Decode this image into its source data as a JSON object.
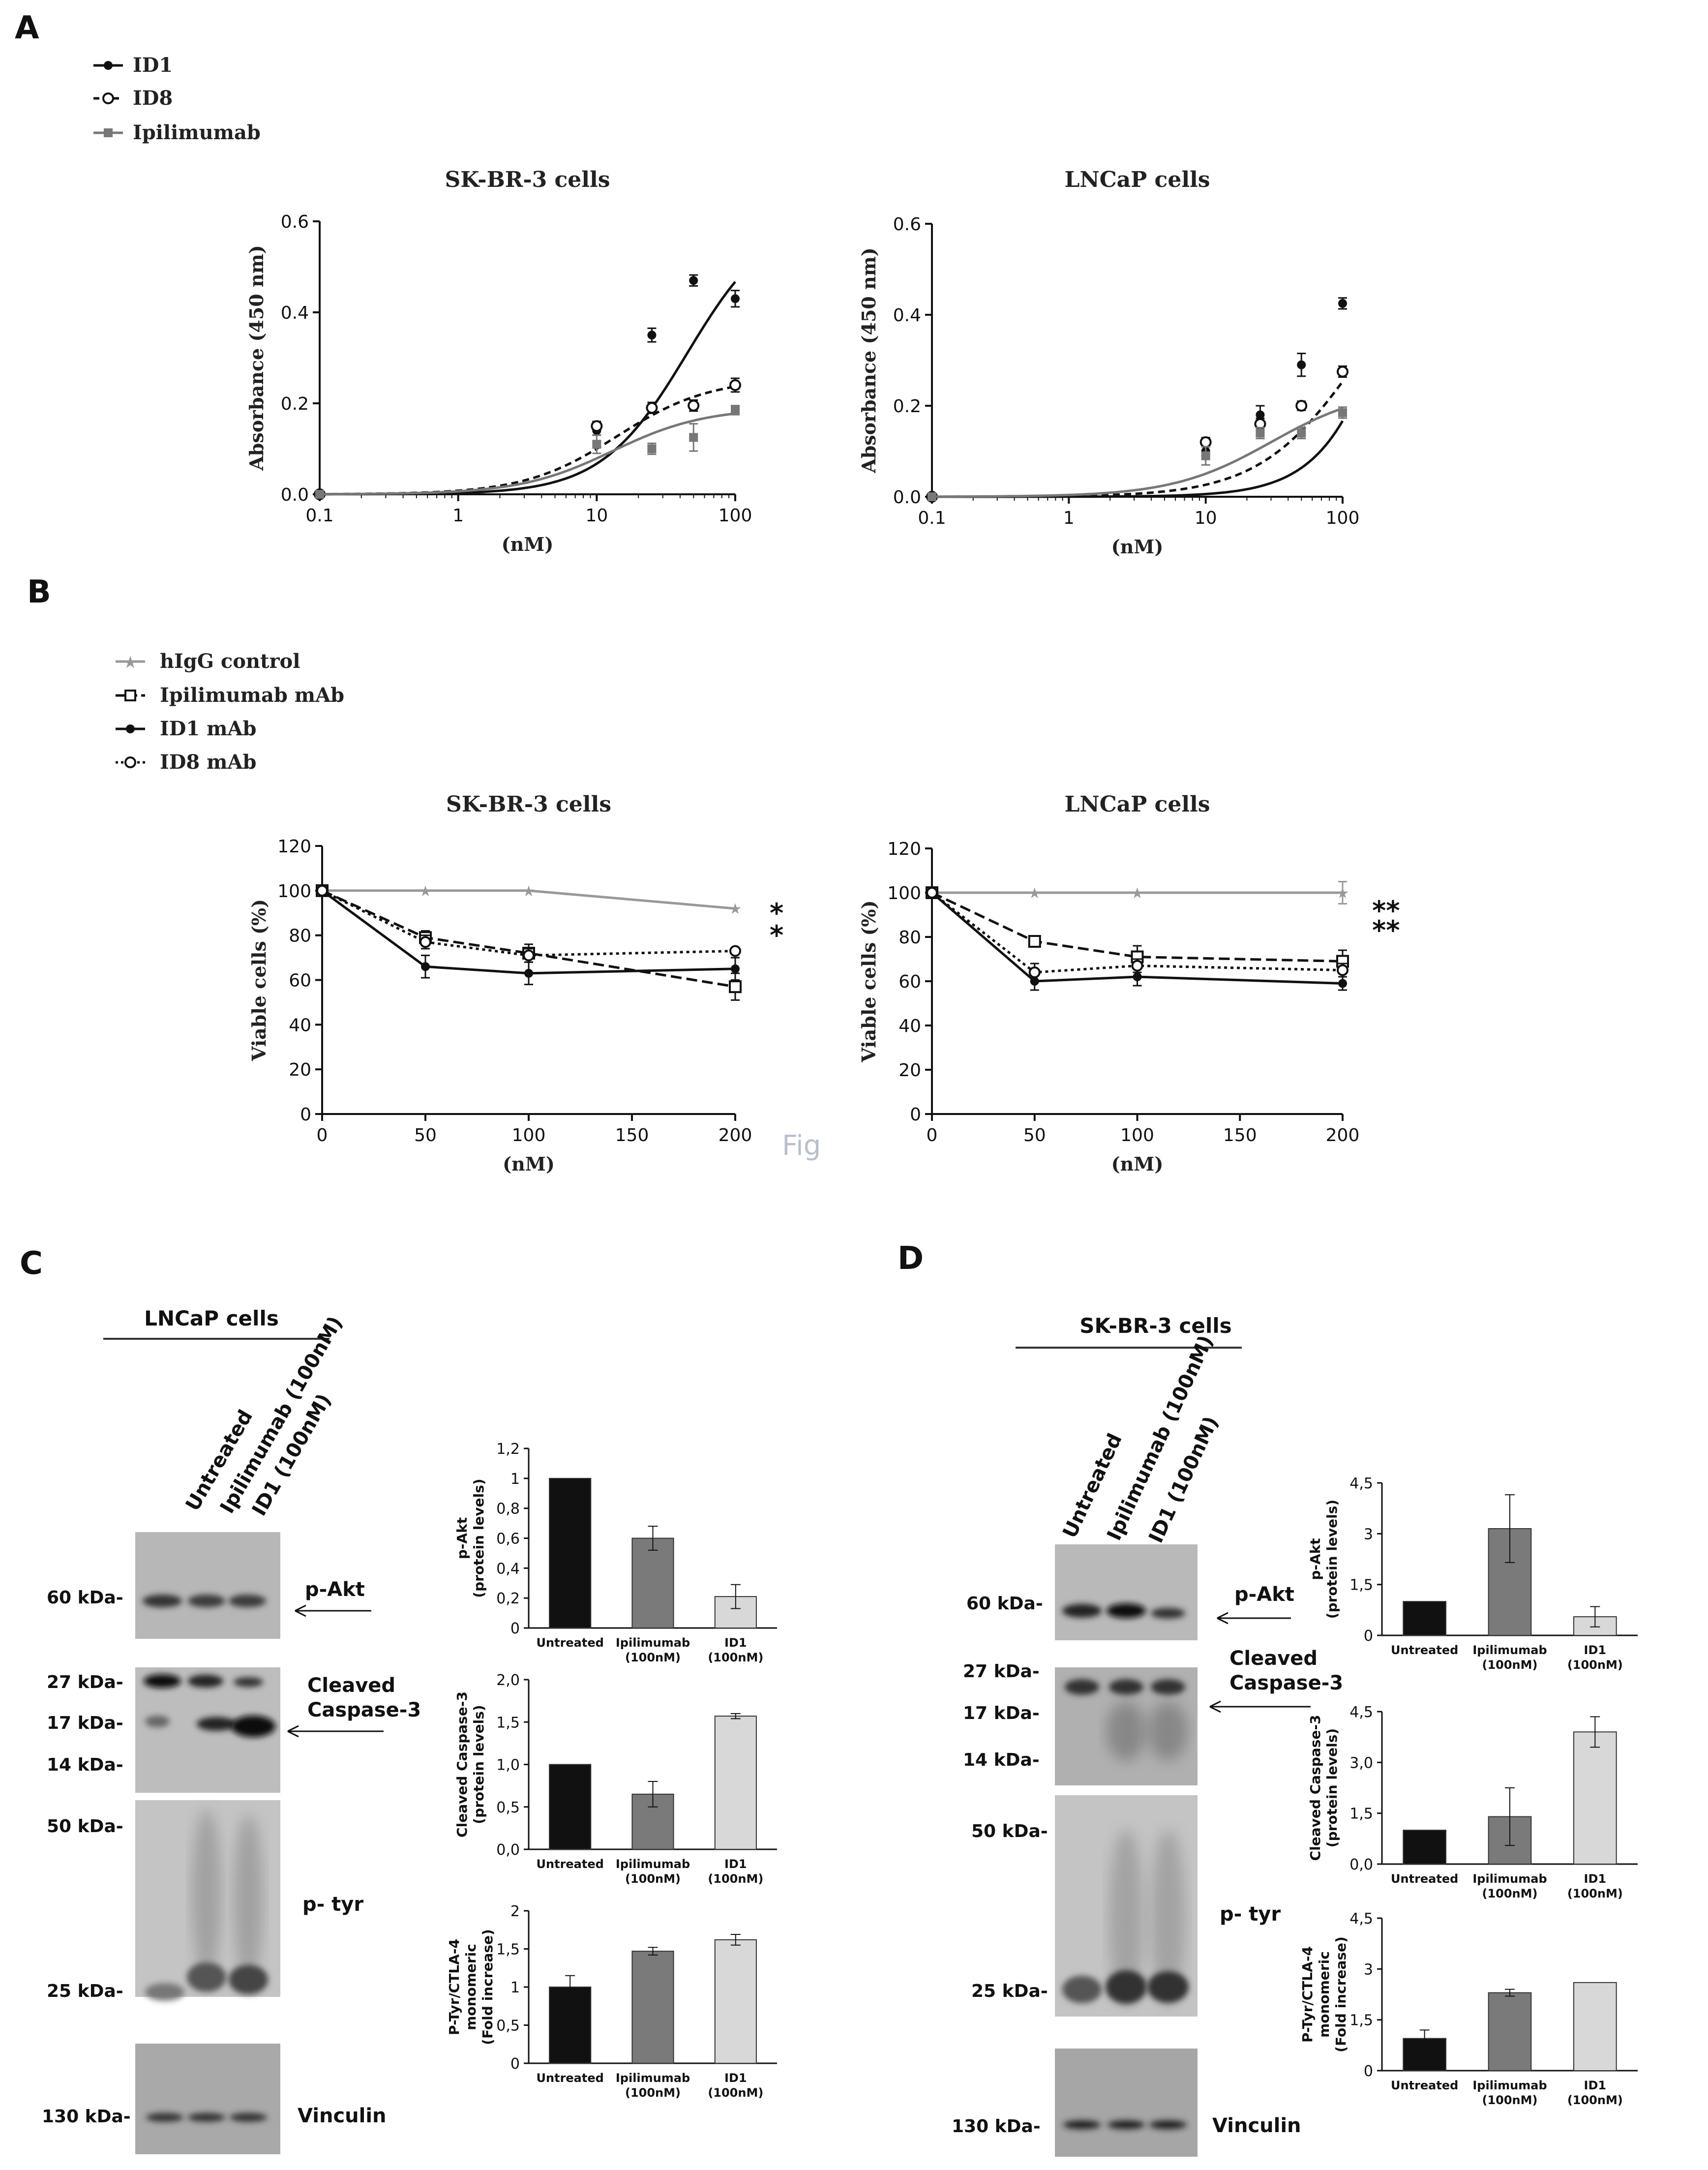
{
  "panel_labels": {
    "A": "A",
    "B": "B",
    "C": "C",
    "D": "D"
  },
  "fig_watermark": "Fig",
  "colors": {
    "black": "#111111",
    "gray": "#777777",
    "lightgray": "#999999",
    "bar_dark": "#111111",
    "bar_mid": "#7a7a7a",
    "bar_light": "#d8d8d8",
    "blot_bg": "#bdbdbd"
  },
  "chart_data": [
    {
      "id": "A1",
      "type": "line",
      "title": "SK-BR-3 cells",
      "xlabel": "(nM)",
      "ylabel": "Absorbance (450 nm)",
      "xscale": "log",
      "xlim": [
        0.1,
        100
      ],
      "ylim": [
        0,
        0.6
      ],
      "xticks": [
        "0.1",
        "1",
        "10",
        "100"
      ],
      "yticks": [
        "0.0",
        "0.2",
        "0.4",
        "0.6"
      ],
      "legend": [
        "ID1",
        "ID8",
        "Ipilimumab"
      ],
      "series": [
        {
          "name": "ID1",
          "style": "solid-black-filled",
          "points": [
            [
              0.1,
              0.0
            ],
            [
              10,
              0.14
            ],
            [
              25,
              0.35
            ],
            [
              50,
              0.47
            ],
            [
              100,
              0.43
            ]
          ],
          "err": [
            0,
            0.01,
            0.015,
            0.012,
            0.018
          ],
          "fit": {
            "top": 0.62,
            "ec50": 45,
            "hill": 1.4
          }
        },
        {
          "name": "ID8",
          "style": "dashed-black-open",
          "points": [
            [
              0.1,
              0.0
            ],
            [
              10,
              0.15
            ],
            [
              25,
              0.19
            ],
            [
              50,
              0.195
            ],
            [
              100,
              0.24
            ]
          ],
          "err": [
            0,
            0.01,
            0.012,
            0.012,
            0.015
          ],
          "fit": {
            "top": 0.255,
            "ec50": 14,
            "hill": 1.3
          }
        },
        {
          "name": "Ipilimumab",
          "style": "solid-gray-square",
          "points": [
            [
              0.1,
              0.0
            ],
            [
              10,
              0.11
            ],
            [
              25,
              0.1
            ],
            [
              50,
              0.125
            ],
            [
              100,
              0.185
            ]
          ],
          "err": [
            0,
            0.02,
            0.012,
            0.03,
            0.01
          ],
          "fit": {
            "top": 0.19,
            "ec50": 13,
            "hill": 1.3
          }
        }
      ]
    },
    {
      "id": "A2",
      "type": "line",
      "title": "LNCaP cells",
      "xlabel": "(nM)",
      "ylabel": "Absorbance (450 nm)",
      "xscale": "log",
      "xlim": [
        0.1,
        100
      ],
      "ylim": [
        0,
        0.6
      ],
      "xticks": [
        "0.1",
        "1",
        "10",
        "100"
      ],
      "yticks": [
        "0.0",
        "0.2",
        "0.4",
        "0.6"
      ],
      "series": [
        {
          "name": "ID1",
          "style": "solid-black-filled",
          "points": [
            [
              0.1,
              0.0
            ],
            [
              10,
              0.1
            ],
            [
              25,
              0.18
            ],
            [
              50,
              0.29
            ],
            [
              100,
              0.425
            ]
          ],
          "err": [
            0,
            0.01,
            0.02,
            0.025,
            0.012
          ],
          "fit": {
            "top": 1.5,
            "ec50": 400,
            "hill": 1.5
          }
        },
        {
          "name": "ID8",
          "style": "dashed-black-open",
          "points": [
            [
              0.1,
              0.0
            ],
            [
              10,
              0.12
            ],
            [
              25,
              0.16
            ],
            [
              50,
              0.2
            ],
            [
              100,
              0.275
            ]
          ],
          "err": [
            0,
            0.01,
            0.012,
            0.01,
            0.012
          ],
          "fit": {
            "top": 0.6,
            "ec50": 130,
            "hill": 1.2
          }
        },
        {
          "name": "Ipilimumab",
          "style": "solid-gray-square",
          "points": [
            [
              0.1,
              0.0
            ],
            [
              10,
              0.09
            ],
            [
              25,
              0.14
            ],
            [
              50,
              0.14
            ],
            [
              100,
              0.185
            ]
          ],
          "err": [
            0,
            0.02,
            0.012,
            0.012,
            0.012
          ],
          "fit": {
            "top": 0.24,
            "ec50": 30,
            "hill": 1.2
          }
        }
      ]
    },
    {
      "id": "B1",
      "type": "line",
      "title": "SK-BR-3 cells",
      "xlabel": "(nM)",
      "ylabel": "Viable cells (%)",
      "xscale": "linear",
      "xlim": [
        0,
        200
      ],
      "ylim": [
        0,
        120
      ],
      "xticks": [
        "0",
        "50",
        "100",
        "150",
        "200"
      ],
      "yticks": [
        "0",
        "20",
        "40",
        "60",
        "80",
        "100",
        "120"
      ],
      "legend": [
        "hIgG control",
        "Ipilimumab mAb",
        "ID1 mAb",
        "ID8 mAb"
      ],
      "significance": [
        "*",
        "*"
      ],
      "series": [
        {
          "name": "hIgG control",
          "style": "gray-star",
          "points": [
            [
              0,
              100
            ],
            [
              50,
              100
            ],
            [
              100,
              100
            ],
            [
              200,
              92
            ]
          ],
          "err": [
            0,
            0,
            0,
            0
          ]
        },
        {
          "name": "Ipilimumab mAb",
          "style": "dash-long-open-square",
          "points": [
            [
              0,
              100
            ],
            [
              50,
              79
            ],
            [
              100,
              72
            ],
            [
              200,
              57
            ]
          ],
          "err": [
            0,
            3,
            4,
            6
          ]
        },
        {
          "name": "ID1 mAb",
          "style": "solid-black-filled",
          "points": [
            [
              0,
              100
            ],
            [
              50,
              66
            ],
            [
              100,
              63
            ],
            [
              200,
              65
            ]
          ],
          "err": [
            0,
            5,
            5,
            5
          ]
        },
        {
          "name": "ID8 mAb",
          "style": "dotted-open-circle",
          "points": [
            [
              0,
              100
            ],
            [
              50,
              77
            ],
            [
              100,
              71
            ],
            [
              200,
              73
            ]
          ],
          "err": [
            0,
            3,
            3,
            1
          ]
        }
      ]
    },
    {
      "id": "B2",
      "type": "line",
      "title": "LNCaP cells",
      "xlabel": "(nM)",
      "ylabel": "Viable cells (%)",
      "xscale": "linear",
      "xlim": [
        0,
        200
      ],
      "ylim": [
        0,
        120
      ],
      "xticks": [
        "0",
        "50",
        "100",
        "150",
        "200"
      ],
      "yticks": [
        "0",
        "20",
        "40",
        "60",
        "80",
        "100",
        "120"
      ],
      "significance": [
        "**",
        "**"
      ],
      "series": [
        {
          "name": "hIgG control",
          "style": "gray-star",
          "points": [
            [
              0,
              100
            ],
            [
              50,
              100
            ],
            [
              100,
              100
            ],
            [
              200,
              100
            ]
          ],
          "err": [
            0,
            0,
            0,
            5
          ]
        },
        {
          "name": "Ipilimumab mAb",
          "style": "dash-long-open-square",
          "points": [
            [
              0,
              100
            ],
            [
              50,
              78
            ],
            [
              100,
              71
            ],
            [
              200,
              69
            ]
          ],
          "err": [
            0,
            2,
            5,
            5
          ]
        },
        {
          "name": "ID1 mAb",
          "style": "solid-black-filled",
          "points": [
            [
              0,
              100
            ],
            [
              50,
              60
            ],
            [
              100,
              62
            ],
            [
              200,
              59
            ]
          ],
          "err": [
            0,
            4,
            4,
            3
          ]
        },
        {
          "name": "ID8 mAb",
          "style": "dotted-open-circle",
          "points": [
            [
              0,
              100
            ],
            [
              50,
              64
            ],
            [
              100,
              67
            ],
            [
              200,
              65
            ]
          ],
          "err": [
            0,
            4,
            3,
            3
          ]
        }
      ]
    },
    {
      "id": "C1",
      "type": "bar",
      "ylabel": "p-Akt (protein levels)",
      "ylim": [
        0,
        1.2
      ],
      "yticks": [
        "0",
        "0,2",
        "0,4",
        "0,6",
        "0,8",
        "1",
        "1,2"
      ],
      "categories": [
        "Untreated",
        "Ipilimumab (100nM)",
        "ID1 (100nM)"
      ],
      "values": [
        1.0,
        0.6,
        0.21
      ],
      "err": [
        0,
        0.08,
        0.08
      ]
    },
    {
      "id": "C2",
      "type": "bar",
      "ylabel": "Cleaved Caspase-3 (protein levels)",
      "ylim": [
        0,
        2.0
      ],
      "yticks": [
        "0,0",
        "0,5",
        "1,0",
        "1,5",
        "2,0"
      ],
      "categories": [
        "Untreated",
        "Ipilimumab (100nM)",
        "ID1 (100nM)"
      ],
      "values": [
        1.0,
        0.65,
        1.57
      ],
      "err": [
        0,
        0.15,
        0.03
      ]
    },
    {
      "id": "C3",
      "type": "bar",
      "ylabel": "P-Tyr/CTLA-4 monomeric (Fold increase)",
      "ylim": [
        0,
        2
      ],
      "yticks": [
        "0",
        "0,5",
        "1",
        "1,5",
        "2"
      ],
      "categories": [
        "Untreated",
        "Ipilimumab (100nM)",
        "ID1 (100nM)"
      ],
      "values": [
        1.0,
        1.47,
        1.62
      ],
      "err": [
        0.15,
        0.05,
        0.07
      ]
    },
    {
      "id": "D1",
      "type": "bar",
      "ylabel": "p-Akt (protein levels)",
      "ylim": [
        0,
        4.5
      ],
      "yticks": [
        "0",
        "1,5",
        "3",
        "4,5"
      ],
      "categories": [
        "Untreated",
        "Ipilimumab (100nM)",
        "ID1 (100nM)"
      ],
      "values": [
        1.0,
        3.15,
        0.55
      ],
      "err": [
        0,
        1.0,
        0.3
      ]
    },
    {
      "id": "D2",
      "type": "bar",
      "ylabel": "Cleaved Caspase-3 (protein levels)",
      "ylim": [
        0,
        4.5
      ],
      "yticks": [
        "0,0",
        "1,5",
        "3,0",
        "4,5"
      ],
      "categories": [
        "Untreated",
        "Ipilimumab (100nM)",
        "ID1 (100nM)"
      ],
      "values": [
        1.0,
        1.4,
        3.9
      ],
      "err": [
        0,
        0.85,
        0.45
      ]
    },
    {
      "id": "D3",
      "type": "bar",
      "ylabel": "P-Tyr/CTLA-4 monomeric (Fold increase)",
      "ylim": [
        0,
        4.5
      ],
      "yticks": [
        "0",
        "1,5",
        "3",
        "4,5"
      ],
      "categories": [
        "Untreated",
        "Ipilimumab (100nM)",
        "ID1 (100nM)"
      ],
      "values": [
        0.95,
        2.3,
        2.6
      ],
      "err": [
        0.25,
        0.1,
        0
      ]
    }
  ],
  "blots": {
    "C": {
      "title": "LNCaP cells",
      "lanes": [
        "Untreated",
        "Ipilimumab (100nM)",
        "ID1 (100nM)"
      ],
      "markers": [
        "60 kDa-",
        "27 kDa-",
        "17 kDa-",
        "14 kDa-",
        "50 kDa-",
        "25 kDa-",
        "130 kDa-"
      ],
      "labels": [
        "p-Akt",
        "Cleaved",
        "Caspase-3",
        "p- tyr",
        "Vinculin"
      ]
    },
    "D": {
      "title": "SK-BR-3 cells",
      "lanes": [
        "Untreated",
        "Ipilimumab (100nM)",
        "ID1 (100nM)"
      ],
      "markers": [
        "60 kDa-",
        "27 kDa-",
        "17 kDa-",
        "14 kDa-",
        "50 kDa-",
        "25 kDa-",
        "130 kDa-"
      ],
      "labels": [
        "p-Akt",
        "Cleaved",
        "Caspase-3",
        "p- tyr",
        "Vinculin"
      ]
    }
  }
}
